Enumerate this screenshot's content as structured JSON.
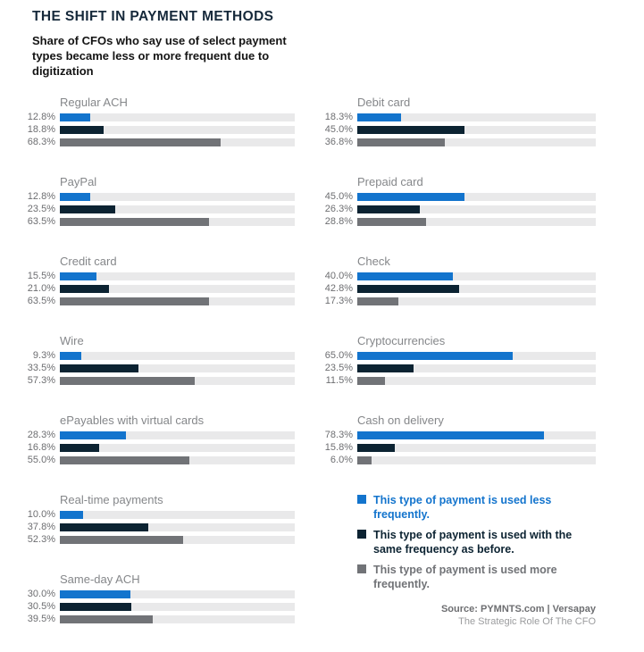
{
  "header": {
    "title": "THE SHIFT IN PAYMENT METHODS",
    "subtitle": "Share of CFOs who say use of select payment types became less or more frequent due to digitization"
  },
  "colors": {
    "track": "#e9e9ea",
    "title": "#16293b",
    "value_label": "#6d6e71",
    "group_label": "#85878a"
  },
  "chart_data": {
    "type": "bar",
    "orientation": "horizontal",
    "unit": "%",
    "xlim": [
      0,
      100
    ],
    "grid": false,
    "legend_position": "bottom-right",
    "series": [
      {
        "key": "less",
        "name": "This type of payment is used less frequently.",
        "color": "#1374cd"
      },
      {
        "key": "same",
        "name": "This type of payment is used with the same frequency as before.",
        "color": "#0c2332"
      },
      {
        "key": "more",
        "name": "This type of payment is used more frequently.",
        "color": "#717377"
      }
    ],
    "groups": [
      {
        "label": "Regular ACH",
        "column": "left",
        "values": [
          12.8,
          18.8,
          68.3
        ]
      },
      {
        "label": "PayPal",
        "column": "left",
        "values": [
          12.8,
          23.5,
          63.5
        ]
      },
      {
        "label": "Credit card",
        "column": "left",
        "values": [
          15.5,
          21.0,
          63.5
        ]
      },
      {
        "label": "Wire",
        "column": "left",
        "values": [
          9.3,
          33.5,
          57.3
        ]
      },
      {
        "label": "ePayables with virtual cards",
        "column": "left",
        "values": [
          28.3,
          16.8,
          55.0
        ]
      },
      {
        "label": "Real-time payments",
        "column": "left",
        "values": [
          10.0,
          37.8,
          52.3
        ]
      },
      {
        "label": "Same-day ACH",
        "column": "left",
        "values": [
          30.0,
          30.5,
          39.5
        ]
      },
      {
        "label": "Debit card",
        "column": "right",
        "values": [
          18.3,
          45.0,
          36.8
        ]
      },
      {
        "label": "Prepaid card",
        "column": "right",
        "values": [
          45.0,
          26.3,
          28.8
        ]
      },
      {
        "label": "Check",
        "column": "right",
        "values": [
          40.0,
          42.8,
          17.3
        ]
      },
      {
        "label": "Cryptocurrencies",
        "column": "right",
        "values": [
          65.0,
          23.5,
          11.5
        ]
      },
      {
        "label": "Cash on delivery",
        "column": "right",
        "values": [
          78.3,
          15.8,
          6.0
        ]
      }
    ]
  },
  "source": {
    "attribution": "Source: PYMNTS.com | Versapay",
    "report": "The Strategic Role Of The CFO"
  }
}
